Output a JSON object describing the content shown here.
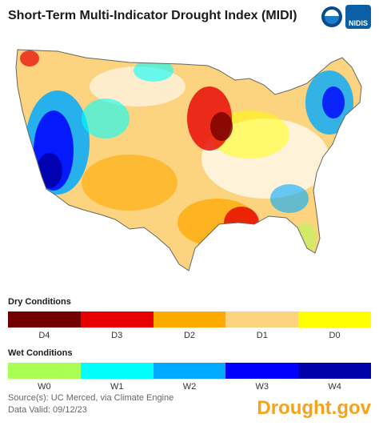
{
  "title": "Short-Term Multi-Indicator Drought Index (MIDI)",
  "logos": {
    "noaa_icon": "noaa-logo-icon",
    "nidis_text": "NIDIS"
  },
  "dry": {
    "label": "Dry Conditions",
    "items": [
      {
        "label": "D4",
        "color": "#730000"
      },
      {
        "label": "D3",
        "color": "#e60000"
      },
      {
        "label": "D2",
        "color": "#ffaa00"
      },
      {
        "label": "D1",
        "color": "#fcd37f"
      },
      {
        "label": "D0",
        "color": "#ffff00"
      }
    ]
  },
  "wet": {
    "label": "Wet Conditions",
    "items": [
      {
        "label": "W0",
        "color": "#aaff55"
      },
      {
        "label": "W1",
        "color": "#01ffff"
      },
      {
        "label": "W2",
        "color": "#00aaff"
      },
      {
        "label": "W3",
        "color": "#0000ff"
      },
      {
        "label": "W4",
        "color": "#0000aa"
      }
    ]
  },
  "source_line": "Source(s): UC Merced, via Climate Engine",
  "valid_line": "Data Valid: 09/12/23",
  "brand": "Drought.gov"
}
